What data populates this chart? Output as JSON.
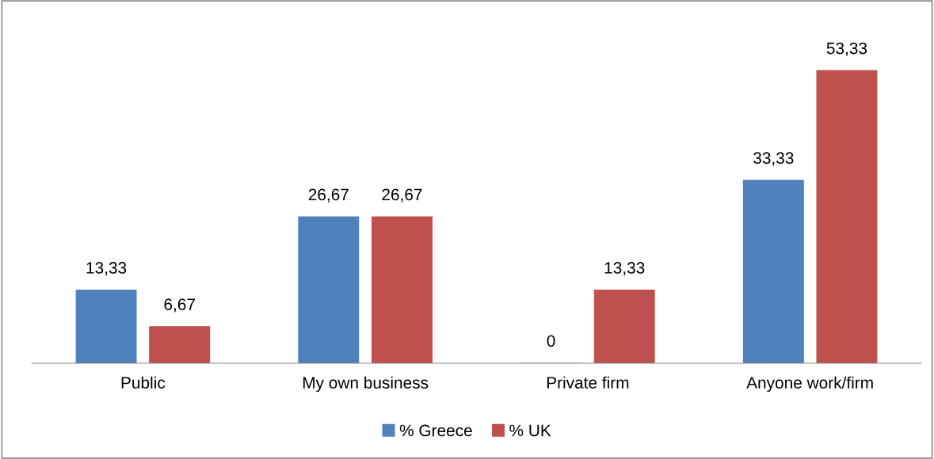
{
  "chart_data": {
    "type": "bar",
    "categories": [
      "Public",
      "My own business",
      "Private firm",
      "Anyone work/firm"
    ],
    "series": [
      {
        "name": "% Greece",
        "color": "#4f81bd",
        "values": [
          13.33,
          26.67,
          0,
          33.33
        ],
        "value_labels": [
          "13,33",
          "26,67",
          "0",
          "33,33"
        ]
      },
      {
        "name": "% UK",
        "color": "#c0504d",
        "values": [
          6.67,
          26.67,
          13.33,
          53.33
        ],
        "value_labels": [
          "6,67",
          "26,67",
          "13,33",
          "53,33"
        ]
      }
    ],
    "legend": "bottom",
    "grid": false
  }
}
